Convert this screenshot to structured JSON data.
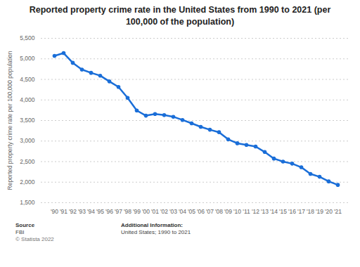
{
  "chart_data": {
    "type": "line",
    "title": "Reported property crime rate in the United States from 1990 to 2021 (per 100,000 of the population)",
    "y_label": "Reported property crime rate per 100,000 population",
    "categories": [
      "'90",
      "'91",
      "'92",
      "'93",
      "'94",
      "'95",
      "'96",
      "'97",
      "'98",
      "'99",
      "'00",
      "'01",
      "'02",
      "'03",
      "'04",
      "'05",
      "'06",
      "'07",
      "'08",
      "'09",
      "'10",
      "'11",
      "'12",
      "'13",
      "'14",
      "'15",
      "'16",
      "'17",
      "'18",
      "'19",
      "'20",
      "'21"
    ],
    "values": [
      5073,
      5140,
      4903,
      4740,
      4660,
      4591,
      4451,
      4316,
      4052,
      3744,
      3618,
      3658,
      3631,
      3591,
      3514,
      3431,
      3346,
      3276,
      3215,
      3041,
      2946,
      2905,
      2868,
      2734,
      2574,
      2500,
      2451,
      2362,
      2200,
      2131,
      2019,
      1933
    ],
    "color": "#1a6ed8",
    "marker": "circle",
    "line_style": "solid",
    "grid": true,
    "ylim": [
      1500,
      5500
    ],
    "yticks": [
      {
        "value": 1500,
        "label": "1,500"
      },
      {
        "value": 2000,
        "label": "2,000"
      },
      {
        "value": 2500,
        "label": "2,500"
      },
      {
        "value": 3000,
        "label": "3,000"
      },
      {
        "value": 3500,
        "label": "3,500"
      },
      {
        "value": 4000,
        "label": "4,000"
      },
      {
        "value": 4500,
        "label": "4,500"
      },
      {
        "value": 5000,
        "label": "5,000"
      },
      {
        "value": 5500,
        "label": "5,500"
      }
    ],
    "source_label": "Source",
    "source": "FBI",
    "copyright": "© Statista 2022",
    "info_label": "Additional Information:",
    "info": "United States; 1990 to 2021"
  }
}
